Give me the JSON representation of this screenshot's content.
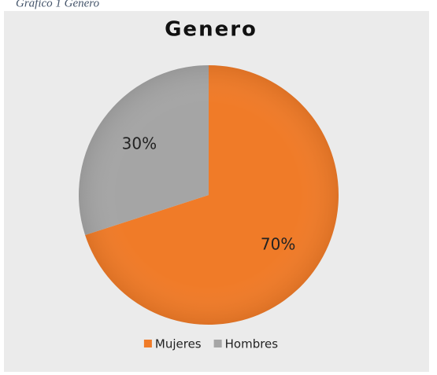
{
  "caption": "Gráfico 1 Género",
  "chart_data": {
    "type": "pie",
    "title": "Genero",
    "categories": [
      "Mujeres",
      "Hombres"
    ],
    "values": [
      70,
      30
    ],
    "value_labels": [
      "70%",
      "30%"
    ],
    "colors": [
      "#f07b28",
      "#a5a5a5"
    ],
    "legend": "bottom"
  }
}
